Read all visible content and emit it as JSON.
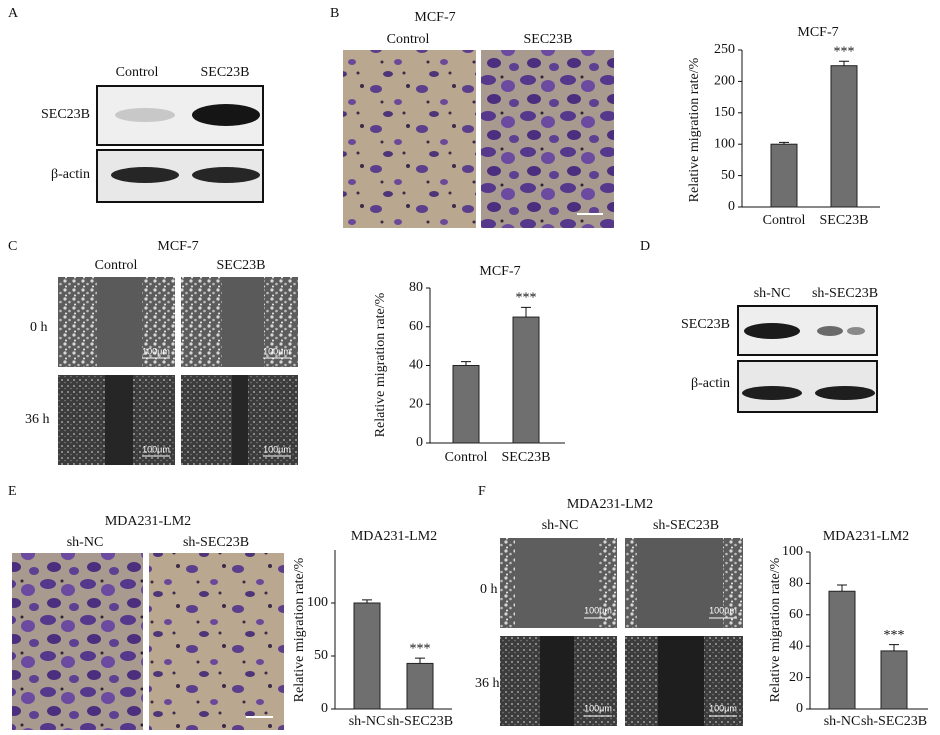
{
  "panel_labels": [
    "A",
    "B",
    "C",
    "D",
    "E",
    "F"
  ],
  "blots": [
    {
      "lanes": [
        "Control",
        "SEC23B"
      ],
      "rows": [
        "SEC23B",
        "β-actin"
      ]
    },
    {
      "lanes": [
        "sh-NC",
        "sh-SEC23B"
      ],
      "rows": [
        "SEC23B",
        "β-actin"
      ]
    }
  ],
  "images": [
    {
      "title": "MCF-7",
      "columns": [
        "Control",
        "SEC23B"
      ]
    },
    {
      "title": "MCF-7",
      "columns": [
        "Control",
        "SEC23B"
      ],
      "rows": [
        "0 h",
        "36 h"
      ],
      "scale": "100μm"
    },
    {
      "title": "MDA231-LM2",
      "columns": [
        "sh-NC",
        "sh-SEC23B"
      ]
    },
    {
      "title": "MDA231-LM2",
      "columns": [
        "sh-NC",
        "sh-SEC23B"
      ],
      "rows": [
        "0 h",
        "36 h"
      ],
      "scale": "100μm"
    }
  ],
  "chart_data": [
    {
      "type": "bar",
      "title": "MCF-7",
      "ylabel": "Relative migration rate/%",
      "categories": [
        "Control",
        "SEC23B"
      ],
      "values": [
        100,
        225
      ],
      "errors": [
        3,
        7
      ],
      "significance": [
        null,
        "***"
      ],
      "color": "#6f6f6f",
      "ylim": [
        0,
        250
      ],
      "yticks": [
        0,
        50,
        100,
        150,
        200,
        250
      ]
    },
    {
      "type": "bar",
      "title": "MCF-7",
      "ylabel": "Relative migration rate/%",
      "categories": [
        "Control",
        "SEC23B"
      ],
      "values": [
        40,
        65
      ],
      "errors": [
        2,
        5
      ],
      "significance": [
        null,
        "***"
      ],
      "color": "#6f6f6f",
      "ylim": [
        0,
        80
      ],
      "yticks": [
        0,
        20,
        40,
        60,
        80
      ]
    },
    {
      "type": "bar",
      "title": "MDA231-LM2",
      "ylabel": "Relative migration rate/%",
      "categories": [
        "sh-NC",
        "sh-SEC23B"
      ],
      "values": [
        100,
        43
      ],
      "errors": [
        3,
        5
      ],
      "significance": [
        null,
        "***"
      ],
      "color": "#6f6f6f",
      "ylim": [
        0,
        150
      ],
      "yticks": [
        0,
        50,
        100
      ]
    },
    {
      "type": "bar",
      "title": "MDA231-LM2",
      "ylabel": "Relative migration rate/%",
      "categories": [
        "sh-NC",
        "sh-SEC23B"
      ],
      "values": [
        75,
        37
      ],
      "errors": [
        4,
        4
      ],
      "significance": [
        null,
        "***"
      ],
      "color": "#6f6f6f",
      "ylim": [
        0,
        100
      ],
      "yticks": [
        0,
        20,
        40,
        60,
        80,
        100
      ]
    }
  ]
}
